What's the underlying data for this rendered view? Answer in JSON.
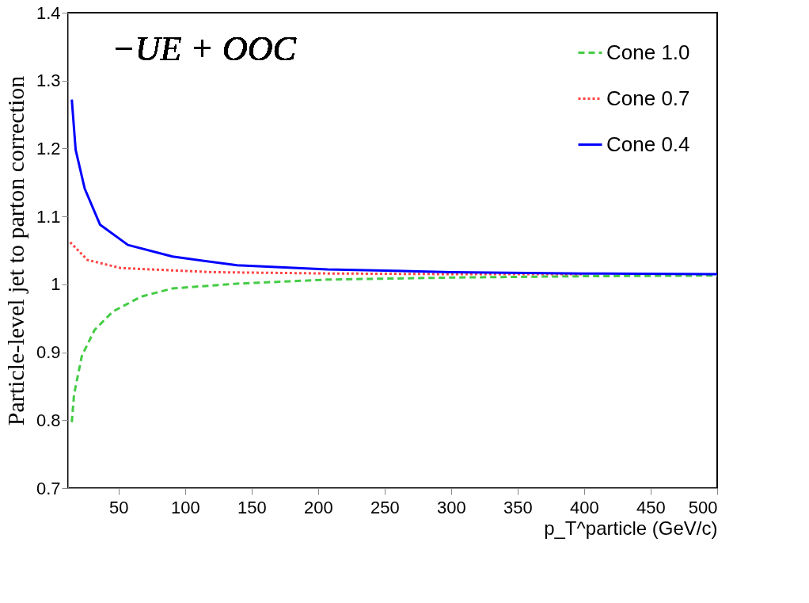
{
  "chart_data": {
    "type": "line",
    "xlabel": "p_T^particle (GeV/c)",
    "ylabel": "Particle-level jet to parton correction",
    "annotations": [
      "−UE + OOC"
    ],
    "xlim": [
      12,
      500
    ],
    "xticks": [
      50,
      100,
      150,
      200,
      250,
      300,
      350,
      400,
      450,
      500
    ],
    "ylim": [
      0.7,
      1.4
    ],
    "yticks": [
      0.7,
      0.8,
      0.9,
      1,
      1.1,
      1.2,
      1.3,
      1.4
    ],
    "grid": false,
    "legend": "top right",
    "series": [
      {
        "name": "Cone 1.0",
        "color": "#44cc44",
        "line_style": "dashed",
        "x": [
          14.8,
          16.5,
          22.4,
          32,
          45.7,
          67,
          90.5,
          139,
          207,
          300,
          400,
          500
        ],
        "values": [
          0.797,
          0.838,
          0.895,
          0.933,
          0.96,
          0.982,
          0.994,
          1.001,
          1.007,
          1.01,
          1.012,
          1.013
        ]
      },
      {
        "name": "Cone 0.7",
        "color": "#ff4444",
        "line_style": "dotted",
        "x": [
          13.6,
          26.5,
          51.5,
          120,
          207,
          300,
          400
        ],
        "values": [
          1.062,
          1.036,
          1.024,
          1.018,
          1.016,
          1.015,
          1.015
        ]
      },
      {
        "name": "Cone 0.4",
        "color": "#0000ff",
        "line_style": "solid",
        "x": [
          14.8,
          17.7,
          24.5,
          36,
          57,
          90.5,
          139,
          207,
          300,
          400,
          500
        ],
        "values": [
          1.272,
          1.198,
          1.141,
          1.088,
          1.058,
          1.041,
          1.028,
          1.022,
          1.018,
          1.016,
          1.015
        ]
      }
    ]
  }
}
